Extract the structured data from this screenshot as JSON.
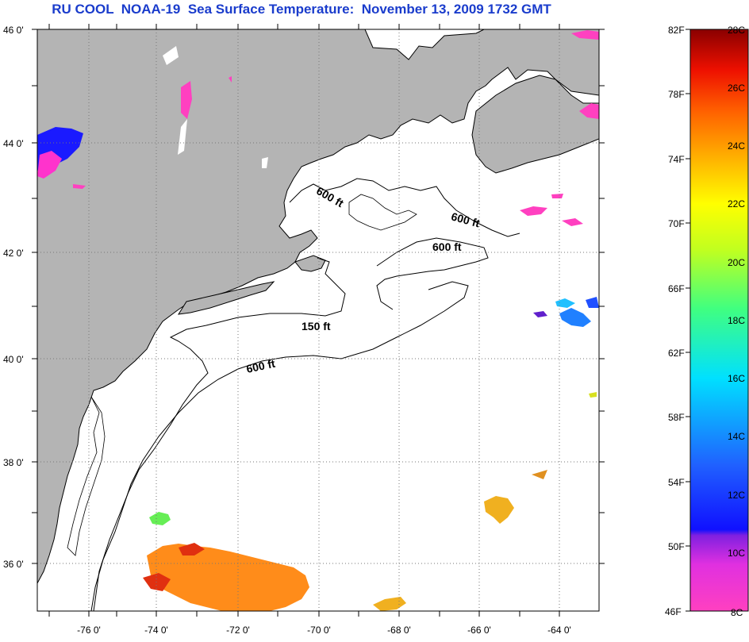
{
  "title": "RU COOL  NOAA-19  Sea Surface Temperature:  November 13, 2009 1732 GMT",
  "lat_labels": [
    "46 0'",
    "44 0'",
    "42 0'",
    "40 0'",
    "38 0'",
    "36 0'"
  ],
  "lon_labels": [
    "-76 0'",
    "-74 0'",
    "-72 0'",
    "-70 0'",
    "-68 0'",
    "-66 0'",
    "-64 0'"
  ],
  "contour_labels": [
    "600 ft",
    "600 ft",
    "600 ft",
    "150 ft",
    "600 ft"
  ],
  "colorbar": {
    "fahrenheit_labels": [
      "82F",
      "78F",
      "74F",
      "70F",
      "66F",
      "62F",
      "58F",
      "54F",
      "50F",
      "46F"
    ],
    "celsius_labels": [
      "28C",
      "26C",
      "24C",
      "22C",
      "20C",
      "18C",
      "16C",
      "14C",
      "12C",
      "10C",
      "8C"
    ],
    "min_c": 8,
    "max_c": 28
  },
  "colors": {
    "land": "#b4b4b4",
    "ocean": "#ffffff",
    "title": "#1a3ccc",
    "warm_patch": "#ff8c1a",
    "cold_patch": "#ff33cc",
    "lake_blue": "#1a1aff"
  }
}
